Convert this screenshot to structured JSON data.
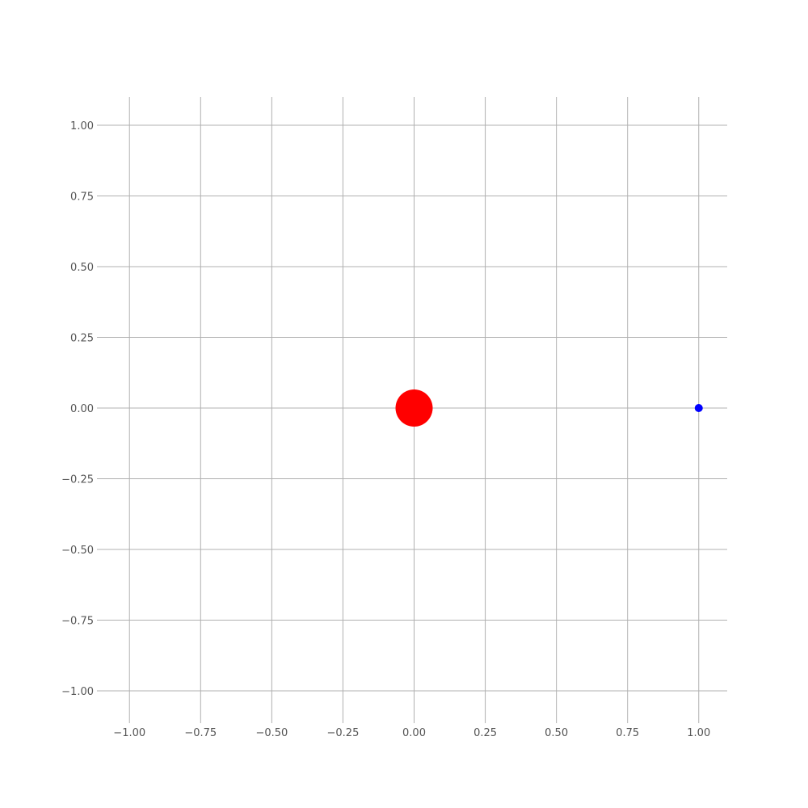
{
  "chart_data": {
    "type": "scatter",
    "title": "",
    "xlabel": "",
    "ylabel": "",
    "xlim": [
      -1.1,
      1.1
    ],
    "ylim": [
      -1.1,
      1.1
    ],
    "grid": true,
    "x_ticks": [
      -1.0,
      -0.75,
      -0.5,
      -0.25,
      0.0,
      0.25,
      0.5,
      0.75,
      1.0
    ],
    "y_ticks": [
      -1.0,
      -0.75,
      -0.5,
      -0.25,
      0.0,
      0.25,
      0.5,
      0.75,
      1.0
    ],
    "x_tick_labels": [
      "−1.00",
      "−0.75",
      "−0.50",
      "−0.25",
      "0.00",
      "0.25",
      "0.50",
      "0.75",
      "1.00"
    ],
    "y_tick_labels": [
      "−1.00",
      "−0.75",
      "−0.50",
      "−0.25",
      "0.00",
      "0.25",
      "0.50",
      "0.75",
      "1.00"
    ],
    "points": [
      {
        "x": 0.0,
        "y": 0.0,
        "color": "#ff0000",
        "marker": "large"
      },
      {
        "x": 1.0,
        "y": 0.0,
        "color": "#0000ff",
        "marker": "small"
      }
    ]
  }
}
